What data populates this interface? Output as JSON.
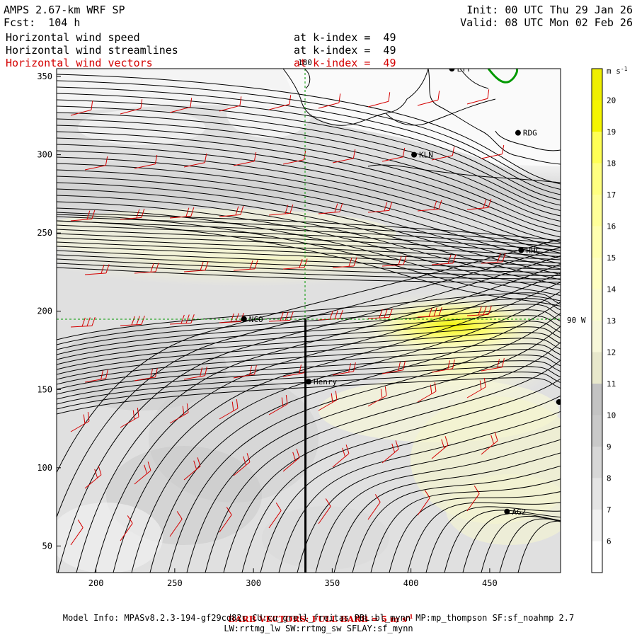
{
  "header": {
    "model_title": "AMPS 2.67-km WRF SP",
    "forecast": "Fcst:  104 h",
    "init": "Init: 00 UTC Thu 29 Jan 26",
    "valid": "Valid: 08 UTC Mon 02 Feb 26",
    "fields": [
      {
        "name": "Horizontal wind speed",
        "level": "at k-index =  49",
        "color": "#000000"
      },
      {
        "name": "Horizontal wind streamlines",
        "level": "at k-index =  49",
        "color": "#000000"
      },
      {
        "name": "Horizontal wind vectors",
        "level": "at k-index =  49",
        "color": "#d40000"
      }
    ]
  },
  "map": {
    "x_axis": {
      "range": [
        175,
        495
      ],
      "ticks": [
        "200",
        "250",
        "300",
        "350",
        "400",
        "450"
      ]
    },
    "y_axis": {
      "range": [
        33,
        355
      ],
      "ticks": [
        "50",
        "100",
        "150",
        "200",
        "250",
        "300",
        "350"
      ]
    },
    "meridian_labels": {
      "top": "180",
      "right": "90 W"
    },
    "stations": [
      {
        "id": "LYT",
        "label": "LYT",
        "x": 426,
        "y": 355
      },
      {
        "id": "RDG",
        "label": "RDG",
        "x": 468,
        "y": 314
      },
      {
        "id": "KLN",
        "label": "KLN",
        "x": 402,
        "y": 300
      },
      {
        "id": "HHC",
        "label": "HHC",
        "x": 470,
        "y": 239
      },
      {
        "id": "NCO",
        "label": "NCO",
        "x": 294,
        "y": 195
      },
      {
        "id": "Henry",
        "label": "Henry",
        "x": 335,
        "y": 155
      },
      {
        "id": "edge",
        "label": "",
        "x": 494,
        "y": 142
      },
      {
        "id": "AG2",
        "label": "AG2",
        "x": 461,
        "y": 72
      }
    ],
    "cross_section": {
      "x": 333,
      "y_from": 33,
      "y_to": 195
    }
  },
  "colorbar": {
    "unit": "m s-1",
    "levels": [
      "6",
      "7",
      "8",
      "9",
      "10",
      "11",
      "12",
      "13",
      "14",
      "15",
      "16",
      "17",
      "18",
      "19",
      "20"
    ],
    "colors": [
      "#ffffff",
      "#f2f2f2",
      "#e4e4e4",
      "#d7d7d7",
      "#c9c9c9",
      "#c3c3c3",
      "#e8e8cc",
      "#f7f7d9",
      "#fbfbd0",
      "#ffffc2",
      "#ffffb0",
      "#ffff99",
      "#ffff80",
      "#ffff55",
      "#f5f500",
      "#efef00"
    ]
  },
  "footer": {
    "barb_note": "BARB VECTORS: FULL BARB = 5 m s",
    "barb_unit_exp": "-1",
    "model_info": "Model Info: MPASv8.2.3-194-gf29cd82c CU:cu_grell_freitas PBL:bl_mynn MP:mp_thompson SF:sf_noahmp 2.7",
    "model_info_2": "LW:rrtmg_lw SW:rrtmg_sw SFLAY:sf_mynn"
  },
  "colors": {
    "barb": "#d40000",
    "streamline": "#000000",
    "coast_green": "#009900",
    "grid": "#009900"
  }
}
